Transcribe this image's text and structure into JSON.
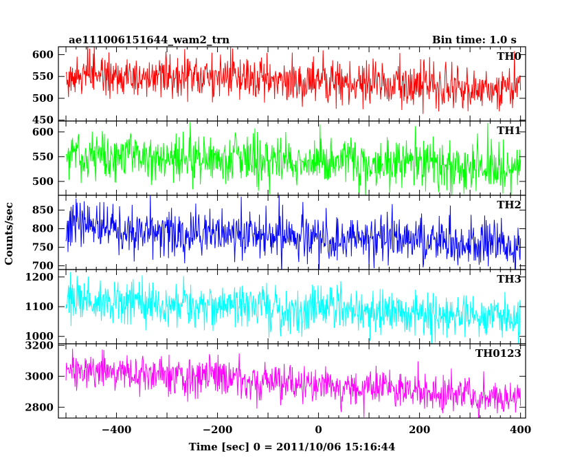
{
  "header": {
    "title": "ae111006151644_wam2_trn",
    "bin_time": "Bin time: 1.0 s"
  },
  "chart_data": {
    "type": "line",
    "title": "ae111006151644_wam2_trn",
    "xlabel": "Time [sec] 0 = 2011/10/06 15:16:44",
    "ylabel": "Counts/sec",
    "xlim": [
      -515,
      410
    ],
    "x_ticks": [
      -400,
      -200,
      0,
      200,
      400
    ],
    "x_tick_labels": [
      "−400",
      "−200",
      "0",
      "200",
      "400"
    ],
    "x_range": [
      -500,
      400
    ],
    "x_step": 1,
    "grid": false,
    "panels": [
      {
        "name": "TH0",
        "color": "#ff0000",
        "ylim": [
          448,
          618
        ],
        "y_ticks": [
          450,
          500,
          550,
          600
        ],
        "trend_start": 556,
        "trend_end": 522,
        "noise_sd": 26,
        "mean": 545,
        "clip_top": true,
        "clip_bottom": false
      },
      {
        "name": "TH1",
        "color": "#00ff00",
        "ylim": [
          472,
          622
        ],
        "y_ticks": [
          500,
          550,
          600
        ],
        "trend_start": 556,
        "trend_end": 524,
        "noise_sd": 25,
        "mean": 543,
        "clip_top": false,
        "clip_bottom": true
      },
      {
        "name": "TH2",
        "color": "#0000ff",
        "ylim": [
          690,
          890
        ],
        "y_ticks": [
          700,
          750,
          800,
          850
        ],
        "trend_start": 805,
        "trend_end": 755,
        "noise_sd": 33,
        "mean": 785,
        "clip_top": true,
        "clip_bottom": true
      },
      {
        "name": "TH3",
        "color": "#00ffff",
        "ylim": [
          975,
          1225
        ],
        "y_ticks": [
          1000,
          1100,
          1200
        ],
        "trend_start": 1125,
        "trend_end": 1065,
        "noise_sd": 38,
        "mean": 1100,
        "clip_top": false,
        "clip_bottom": true
      },
      {
        "name": "TH0123",
        "color": "#ff00ff",
        "ylim": [
          2730,
          3210
        ],
        "y_ticks": [
          2800,
          3000,
          3200
        ],
        "trend_start": 3050,
        "trend_end": 2860,
        "noise_sd": 62,
        "mean": 2965,
        "clip_top": false,
        "clip_bottom": true
      }
    ]
  }
}
